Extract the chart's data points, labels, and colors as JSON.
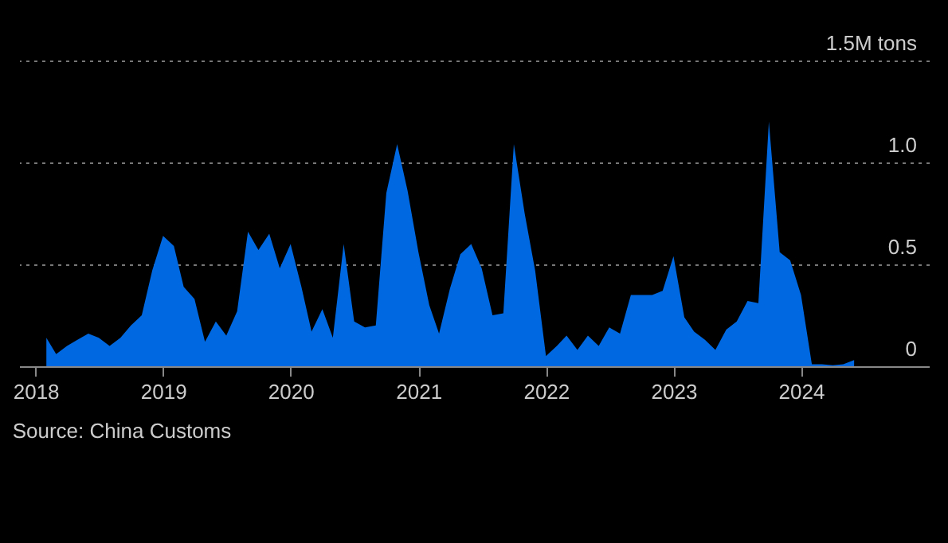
{
  "chart_data": {
    "type": "area",
    "color": "#0068e0",
    "x": [
      "2018-02",
      "2018-03",
      "2018-04",
      "2018-05",
      "2018-06",
      "2018-07",
      "2018-08",
      "2018-09",
      "2018-10",
      "2018-11",
      "2018-12",
      "2019-01",
      "2019-02",
      "2019-03",
      "2019-04",
      "2019-05",
      "2019-06",
      "2019-07",
      "2019-08",
      "2019-09",
      "2019-10",
      "2019-11",
      "2019-12",
      "2020-01",
      "2020-02",
      "2020-03",
      "2020-04",
      "2020-05",
      "2020-06",
      "2020-07",
      "2020-08",
      "2020-09",
      "2020-10",
      "2020-11",
      "2020-12",
      "2021-01",
      "2021-02",
      "2021-03",
      "2021-04",
      "2021-05",
      "2021-06",
      "2021-07",
      "2021-08",
      "2021-09",
      "2021-10",
      "2021-11",
      "2021-12",
      "2022-01",
      "2022-02",
      "2022-03",
      "2022-04",
      "2022-05",
      "2022-06",
      "2022-07",
      "2022-08",
      "2022-09",
      "2022-10",
      "2022-11",
      "2022-12",
      "2023-01",
      "2023-02",
      "2023-03",
      "2023-04",
      "2023-05",
      "2023-06",
      "2023-07",
      "2023-08",
      "2023-09",
      "2023-10",
      "2023-11",
      "2023-12",
      "2024-01",
      "2024-02",
      "2024-03",
      "2024-04",
      "2024-05",
      "2024-06"
    ],
    "values": [
      0.14,
      0.06,
      0.1,
      0.13,
      0.16,
      0.14,
      0.1,
      0.14,
      0.2,
      0.25,
      0.47,
      0.64,
      0.59,
      0.39,
      0.33,
      0.12,
      0.22,
      0.15,
      0.27,
      0.66,
      0.57,
      0.65,
      0.48,
      0.6,
      0.39,
      0.17,
      0.28,
      0.14,
      0.6,
      0.22,
      0.19,
      0.2,
      0.85,
      1.09,
      0.86,
      0.56,
      0.3,
      0.16,
      0.38,
      0.55,
      0.6,
      0.48,
      0.25,
      0.26,
      1.09,
      0.75,
      0.47,
      0.05,
      0.1,
      0.15,
      0.08,
      0.15,
      0.1,
      0.19,
      0.16,
      0.35,
      0.35,
      0.35,
      0.37,
      0.54,
      0.24,
      0.17,
      0.13,
      0.08,
      0.18,
      0.22,
      0.32,
      0.31,
      1.2,
      0.56,
      0.52,
      0.35,
      0.01,
      0.01,
      0.005,
      0.01,
      0.03
    ],
    "xlim": [
      "2017-11-15",
      "2025-01-01"
    ],
    "xticks": [
      {
        "value": "2018-01-01",
        "label": "2018"
      },
      {
        "value": "2019-01-01",
        "label": "2019"
      },
      {
        "value": "2020-01-01",
        "label": "2020"
      },
      {
        "value": "2021-01-01",
        "label": "2021"
      },
      {
        "value": "2022-01-01",
        "label": "2022"
      },
      {
        "value": "2023-01-01",
        "label": "2023"
      },
      {
        "value": "2024-01-01",
        "label": "2024"
      }
    ],
    "ylim": [
      0,
      1.5
    ],
    "yticks": [
      0,
      0.5,
      {
        "value": 1,
        "label": "1.0"
      },
      {
        "value": 1.5,
        "label": "1.5M tons"
      }
    ],
    "grid": "y",
    "annotations": [
      "Source: China Customs"
    ]
  }
}
